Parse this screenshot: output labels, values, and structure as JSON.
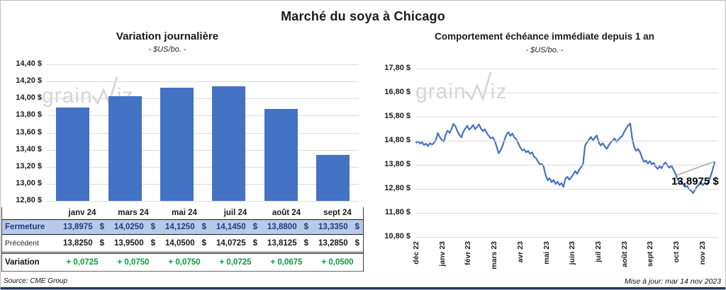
{
  "page": {
    "title": "Marché du soya à Chicago",
    "source": "Source: CME Group",
    "updated": "Mise à jour: mar 14 nov 2023"
  },
  "watermark": {
    "left": "grain",
    "right": "iz"
  },
  "colors": {
    "accent_blue": "#4472C4",
    "fermeture_bg": "#B9C9E9",
    "fermeture_text": "#1F3D7A",
    "variation_green": "#00A13C",
    "gridline": "#DCDCDC",
    "bottom_bar_navy": "#17375E",
    "watermark_gray": "#D5D5D5"
  },
  "chart_data": [
    {
      "type": "bar",
      "title": "Variation journalière",
      "subtitle": "- $US/bo. -",
      "categories": [
        "janv 24",
        "mars 24",
        "mai 24",
        "juil 24",
        "août 24",
        "sept 24"
      ],
      "values": [
        13.8975,
        14.025,
        14.125,
        14.145,
        13.88,
        13.335
      ],
      "ylim": [
        12.8,
        14.4
      ],
      "ytick_labels": [
        "14,40 $",
        "14,20 $",
        "14,00 $",
        "13,80 $",
        "13,60 $",
        "13,40 $",
        "13,20 $",
        "13,00 $",
        "12,80 $"
      ],
      "grid": true,
      "legend": false
    },
    {
      "type": "line",
      "title": "Comportement échéance immédiate depuis 1 an",
      "subtitle": "- $US/bo. -",
      "ylim": [
        10.8,
        17.8
      ],
      "ytick_labels": [
        "17,80 $",
        "16,80 $",
        "15,80 $",
        "14,80 $",
        "13,80 $",
        "12,80 $",
        "11,80 $",
        "10,80 $"
      ],
      "xtick_labels": [
        "déc 22",
        "janv 23",
        "févr 23",
        "mars 23",
        "avr 23",
        "mai 23",
        "juin 23",
        "juil 23",
        "août 23",
        "sept 23",
        "oct 23",
        "nov 23"
      ],
      "values": [
        14.72,
        14.78,
        14.68,
        14.74,
        14.62,
        14.68,
        14.58,
        14.7,
        14.64,
        14.7,
        14.82,
        15.12,
        14.96,
        14.84,
        14.76,
        15.04,
        15.22,
        15.12,
        15.3,
        15.5,
        15.4,
        15.2,
        15.04,
        14.94,
        15.18,
        15.3,
        15.42,
        15.26,
        15.34,
        15.46,
        15.28,
        15.38,
        15.48,
        15.3,
        15.2,
        15.28,
        15.12,
        15.0,
        14.9,
        14.94,
        14.8,
        14.55,
        14.28,
        14.4,
        14.6,
        14.84,
        15.06,
        15.16,
        15.0,
        15.1,
        14.94,
        14.86,
        14.7,
        14.52,
        14.4,
        14.44,
        14.32,
        14.38,
        14.26,
        14.32,
        14.14,
        14.08,
        13.94,
        13.8,
        13.84,
        13.7,
        13.35,
        13.16,
        13.24,
        13.07,
        13.17,
        13.0,
        13.1,
        12.96,
        13.04,
        12.88,
        13.22,
        13.3,
        13.18,
        13.28,
        13.4,
        13.54,
        13.42,
        13.6,
        13.7,
        13.84,
        14.6,
        14.73,
        14.84,
        14.96,
        14.82,
        14.93,
        15.02,
        14.73,
        14.6,
        14.7,
        14.57,
        14.46,
        14.6,
        14.72,
        14.8,
        14.9,
        14.76,
        14.84,
        14.94,
        15.0,
        15.18,
        15.32,
        15.44,
        15.52,
        14.9,
        14.56,
        14.38,
        14.46,
        14.32,
        14.1,
        13.92,
        13.98,
        13.85,
        13.95,
        13.82,
        13.88,
        13.72,
        13.63,
        13.74,
        13.66,
        13.82,
        13.9,
        13.76,
        13.68,
        13.77,
        13.6,
        13.44,
        13.22,
        13.08,
        13.12,
        12.97,
        12.88,
        12.92,
        12.78,
        12.72,
        12.62,
        12.76,
        12.9,
        12.98,
        13.08,
        12.95,
        13.05,
        12.98,
        13.12,
        13.35,
        13.6,
        13.8975
      ],
      "annotation": {
        "text": "13,8975 $",
        "value": 13.8975
      },
      "grid": true,
      "legend": false
    },
    {
      "type": "table",
      "columns": [
        "",
        "janv 24",
        "mars 24",
        "mai 24",
        "juil 24",
        "août 24",
        "sept 24"
      ],
      "rows": [
        {
          "label": "Fermeture",
          "style": "fermeture",
          "unit": "$",
          "values": [
            "13,8975",
            "14,0250",
            "14,1250",
            "14,1450",
            "13,8800",
            "13,3350"
          ]
        },
        {
          "label": "Précédent",
          "style": "precedent",
          "unit": "$",
          "values": [
            "13,8250",
            "13,9500",
            "14,0500",
            "14,0725",
            "13,8125",
            "13,2850"
          ]
        },
        {
          "label": "Variation",
          "style": "variation",
          "values": [
            "+ 0,0725",
            "+ 0,0750",
            "+ 0,0750",
            "+ 0,0725",
            "+ 0,0675",
            "+ 0,0500"
          ]
        }
      ]
    }
  ]
}
